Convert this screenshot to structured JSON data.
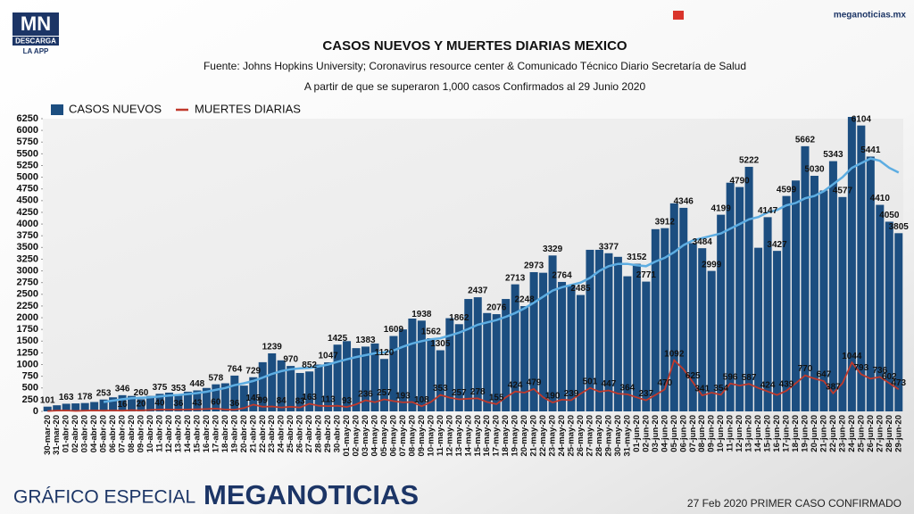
{
  "brand": {
    "logo": "MN",
    "download": "DESCARGA",
    "app": "LA APP",
    "site": "meganoticias.mx"
  },
  "footer": {
    "left": "GRÁFICO ESPECIAL",
    "brand": "MEGANOTICIAS",
    "right": "27 Feb 2020 PRIMER CASO CONFIRMADO"
  },
  "chart_data": {
    "type": "bar",
    "title": "CASOS NUEVOS Y MUERTES DIARIAS MEXICO",
    "subtitle": "Fuente: Johns Hopkins University; Coronavirus resource center & Comunicado Técnico Diario Secretaría de Salud",
    "note": "A partir de que se superaron 1,000 casos Confirmados al 29 Junio 2020",
    "categories": [
      "30-mar-20",
      "31-mar-20",
      "01-abr-20",
      "02-abr-20",
      "03-abr-20",
      "04-abr-20",
      "05-abr-20",
      "06-abr-20",
      "07-abr-20",
      "08-abr-20",
      "09-abr-20",
      "10-abr-20",
      "11-abr-20",
      "12-abr-20",
      "13-abr-20",
      "14-abr-20",
      "15-abr-20",
      "16-abr-20",
      "17-abr-20",
      "18-abr-20",
      "19-abr-20",
      "20-abr-20",
      "21-abr-20",
      "22-abr-20",
      "23-abr-20",
      "24-abr-20",
      "25-abr-20",
      "26-abr-20",
      "27-abr-20",
      "28-abr-20",
      "29-abr-20",
      "30-abr-20",
      "01-may-20",
      "02-may-20",
      "03-may-20",
      "04-may-20",
      "05-may-20",
      "06-may-20",
      "07-may-20",
      "08-may-20",
      "09-may-20",
      "10-may-20",
      "11-may-20",
      "12-may-20",
      "13-may-20",
      "14-may-20",
      "15-may-20",
      "16-may-20",
      "17-may-20",
      "18-may-20",
      "19-may-20",
      "20-may-20",
      "21-may-20",
      "22-may-20",
      "23-may-20",
      "24-may-20",
      "25-may-20",
      "26-may-20",
      "27-may-20",
      "28-may-20",
      "29-may-20",
      "30-may-20",
      "31-may-20",
      "01-jun-20",
      "02-jun-20",
      "03-jun-20",
      "04-jun-20",
      "05-jun-20",
      "06-jun-20",
      "07-jun-20",
      "08-jun-20",
      "09-jun-20",
      "10-jun-20",
      "11-jun-20",
      "12-jun-20",
      "13-jun-20",
      "14-jun-20",
      "15-jun-20",
      "16-jun-20",
      "17-jun-20",
      "18-jun-20",
      "19-jun-20",
      "20-jun-20",
      "21-jun-20",
      "22-jun-20",
      "23-jun-20",
      "24-jun-20",
      "25-jun-20",
      "26-jun-20",
      "27-jun-20",
      "28-jun-20",
      "29-jun-20"
    ],
    "series": [
      {
        "name": "CASOS NUEVOS",
        "type": "bar",
        "color": "#1c4e80",
        "values": [
          101,
          130,
          163,
          170,
          178,
          200,
          253,
          300,
          346,
          330,
          260,
          330,
          375,
          400,
          353,
          420,
          448,
          500,
          578,
          600,
          764,
          550,
          729,
          1050,
          1239,
          1090,
          970,
          820,
          852,
          1000,
          1047,
          1425,
          1500,
          1350,
          1383,
          1450,
          1120,
          1609,
          1750,
          1982,
          1938,
          1562,
          1305,
          1990,
          1862,
          2400,
          2437,
          2100,
          2076,
          2400,
          2713,
          2248,
          2973,
          2960,
          3329,
          2764,
          2700,
          2485,
          3450,
          3450,
          3377,
          3300,
          2885,
          3152,
          2771,
          3891,
          3912,
          4442,
          4346,
          3593,
          3484,
          2999,
          4199,
          4883,
          4790,
          5222,
          3494,
          4147,
          3427,
          4599,
          4930,
          5662,
          5030,
          4717,
          5343,
          4577,
          6288,
          6104,
          5441,
          4410,
          4050,
          3805
        ],
        "value_labels": [
          "101",
          null,
          "163",
          null,
          "178",
          null,
          "253",
          null,
          "346",
          null,
          "260",
          null,
          "375",
          null,
          "353",
          null,
          "448",
          null,
          "578",
          null,
          "764",
          null,
          "729",
          null,
          "1239",
          null,
          "970",
          null,
          "852",
          null,
          "1047",
          "1425",
          null,
          null,
          "1383",
          null,
          "1120",
          "1609",
          null,
          null,
          "1938",
          "1562",
          "1305",
          null,
          "1862",
          null,
          "2437",
          null,
          "2076",
          null,
          "2713",
          "2248",
          "2973",
          null,
          "3329",
          "2764",
          null,
          "2485",
          null,
          null,
          "3377",
          null,
          null,
          "3152",
          "2771",
          null,
          "3912",
          null,
          "4346",
          null,
          "3484",
          "2999",
          "4199",
          null,
          "4790",
          "5222",
          null,
          "4147",
          "3427",
          "4599",
          null,
          "5662",
          "5030",
          null,
          "5343",
          "4577",
          null,
          "6104",
          "5441",
          "4410",
          "4050",
          "3805"
        ]
      },
      {
        "name": "MUERTES DIARIAS",
        "type": "line",
        "color": "#c0392b",
        "values": [
          8,
          18,
          20,
          10,
          15,
          20,
          15,
          20,
          16,
          25,
          20,
          30,
          40,
          38,
          36,
          40,
          43,
          50,
          60,
          40,
          36,
          70,
          145,
          99,
          105,
          84,
          100,
          83,
          163,
          120,
          113,
          120,
          93,
          150,
          236,
          197,
          257,
          220,
          193,
          200,
          108,
          200,
          353,
          294,
          257,
          270,
          278,
          200,
          155,
          300,
          424,
          400,
          479,
          300,
          190,
          250,
          239,
          380,
          501,
          420,
          447,
          380,
          364,
          300,
          237,
          350,
          470,
          1092,
          900,
          625,
          341,
          400,
          354,
          596,
          550,
          587,
          500,
          424,
          350,
          439,
          600,
          770,
          700,
          647,
          387,
          600,
          1044,
          793,
          700,
          736,
          602,
          473
        ],
        "value_labels": [
          null,
          null,
          null,
          null,
          null,
          null,
          null,
          null,
          "16",
          null,
          "20",
          null,
          "40",
          null,
          "36",
          null,
          "43",
          null,
          "60",
          null,
          "36",
          null,
          "145",
          "99",
          null,
          "84",
          null,
          "83",
          "163",
          null,
          "113",
          null,
          "93",
          null,
          "236",
          null,
          "257",
          null,
          "193",
          null,
          "108",
          null,
          "353",
          null,
          "257",
          null,
          "278",
          null,
          "155",
          null,
          "424",
          null,
          "479",
          null,
          "190",
          null,
          "239",
          null,
          "501",
          null,
          "447",
          null,
          "364",
          null,
          "237",
          null,
          "470",
          "1092",
          null,
          "625",
          "341",
          null,
          "354",
          "596",
          null,
          "587",
          null,
          "424",
          null,
          "439",
          null,
          "770",
          null,
          "647",
          "387",
          null,
          "1044",
          "793",
          null,
          "736",
          "602",
          "473"
        ]
      },
      {
        "type": "line",
        "color": "#5dade2",
        "values": [
          null,
          null,
          null,
          null,
          null,
          null,
          200,
          230,
          260,
          280,
          290,
          300,
          320,
          340,
          350,
          370,
          390,
          420,
          460,
          500,
          560,
          600,
          650,
          720,
          800,
          860,
          900,
          920,
          930,
          960,
          1000,
          1060,
          1110,
          1160,
          1200,
          1240,
          1260,
          1300,
          1380,
          1450,
          1500,
          1540,
          1560,
          1620,
          1680,
          1760,
          1850,
          1900,
          1950,
          2020,
          2100,
          2200,
          2320,
          2450,
          2580,
          2650,
          2700,
          2750,
          2850,
          3000,
          3100,
          3150,
          3150,
          3120,
          3100,
          3200,
          3280,
          3400,
          3550,
          3650,
          3700,
          3750,
          3800,
          3900,
          4000,
          4100,
          4150,
          4250,
          4300,
          4400,
          4450,
          4550,
          4600,
          4700,
          4850,
          5000,
          5200,
          5300,
          5400,
          5350,
          5200,
          5100
        ]
      }
    ],
    "ylim": [
      0,
      6250
    ],
    "yticks": [
      0,
      250,
      500,
      750,
      1000,
      1250,
      1500,
      1750,
      2000,
      2250,
      2500,
      2750,
      3000,
      3250,
      3500,
      3750,
      4000,
      4250,
      4500,
      4750,
      5000,
      5250,
      5500,
      5750,
      6000,
      6250
    ],
    "grid": false
  }
}
